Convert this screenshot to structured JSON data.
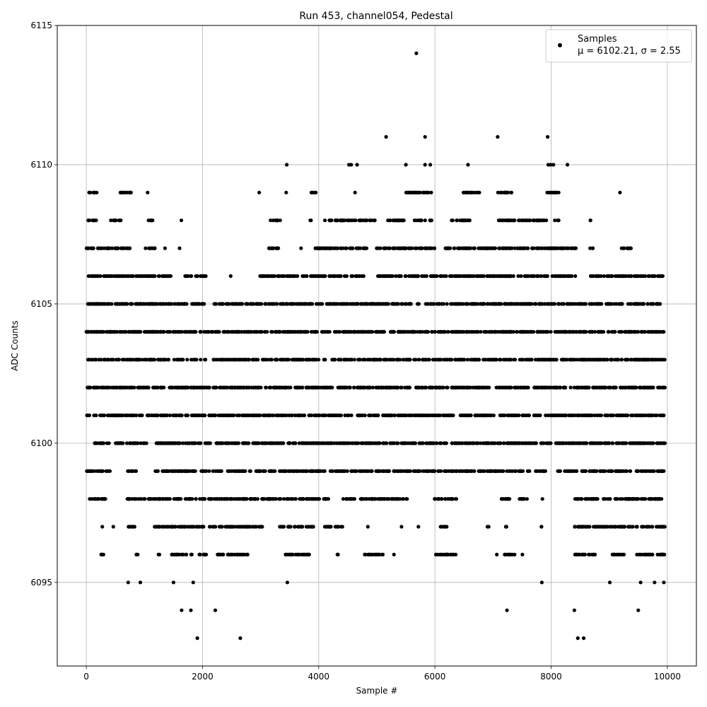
{
  "chart_data": {
    "type": "scatter",
    "title": "Run 453, channel054, Pedestal",
    "xlabel": "Sample #",
    "ylabel": "ADC Counts",
    "xlim": [
      -500,
      10500
    ],
    "ylim": [
      6092,
      6115
    ],
    "xticks": [
      0,
      2000,
      4000,
      6000,
      8000,
      10000
    ],
    "yticks": [
      6095,
      6100,
      6105,
      6110,
      6115
    ],
    "grid": true,
    "legend": {
      "placement": "top-right",
      "entries": [
        {
          "label": "Samples",
          "sublabel": "μ = 6102.21, σ = 2.55"
        }
      ]
    },
    "marker_color": "#000000",
    "series": [
      {
        "name": "Samples",
        "n_samples": 10000,
        "mean": 6102.21,
        "sigma": 2.55,
        "outliers": [
          {
            "x": 5680,
            "y": 6114
          },
          {
            "x": 5160,
            "y": 6111
          },
          {
            "x": 5830,
            "y": 6111
          },
          {
            "x": 7080,
            "y": 6111
          },
          {
            "x": 7940,
            "y": 6111
          },
          {
            "x": 3450,
            "y": 6110
          },
          {
            "x": 4520,
            "y": 6110
          },
          {
            "x": 4560,
            "y": 6110
          },
          {
            "x": 4660,
            "y": 6110
          },
          {
            "x": 5500,
            "y": 6110
          },
          {
            "x": 5830,
            "y": 6110
          },
          {
            "x": 5920,
            "y": 6110
          },
          {
            "x": 6570,
            "y": 6110
          },
          {
            "x": 7950,
            "y": 6110
          },
          {
            "x": 7990,
            "y": 6110
          },
          {
            "x": 8040,
            "y": 6110
          },
          {
            "x": 8280,
            "y": 6110
          },
          {
            "x": 1910,
            "y": 6093
          },
          {
            "x": 2650,
            "y": 6093
          },
          {
            "x": 8460,
            "y": 6093
          },
          {
            "x": 8560,
            "y": 6093
          },
          {
            "x": 720,
            "y": 6095
          },
          {
            "x": 930,
            "y": 6095
          },
          {
            "x": 1500,
            "y": 6095
          },
          {
            "x": 1840,
            "y": 6095
          },
          {
            "x": 3460,
            "y": 6095
          },
          {
            "x": 7840,
            "y": 6095
          },
          {
            "x": 9010,
            "y": 6095
          },
          {
            "x": 9540,
            "y": 6095
          },
          {
            "x": 9780,
            "y": 6095
          },
          {
            "x": 9940,
            "y": 6095
          },
          {
            "x": 1640,
            "y": 6094
          },
          {
            "x": 1800,
            "y": 6094
          },
          {
            "x": 2220,
            "y": 6094
          },
          {
            "x": 7240,
            "y": 6094
          },
          {
            "x": 8400,
            "y": 6094
          },
          {
            "x": 9500,
            "y": 6094
          }
        ],
        "bands": [
          {
            "y": 6109,
            "ranges": [
              [
                20,
                180
              ],
              [
                560,
                800
              ],
              [
                1050,
                1060
              ],
              [
                2970,
                2980
              ],
              [
                3430,
                3450
              ],
              [
                3840,
                3960
              ],
              [
                4620,
                4630
              ],
              [
                5460,
                5950
              ],
              [
                6490,
                6780
              ],
              [
                7080,
                7330
              ],
              [
                7930,
                8130
              ],
              [
                9180,
                9190
              ]
            ]
          },
          {
            "y": 6108,
            "ranges": [
              [
                20,
                180
              ],
              [
                420,
                620
              ],
              [
                1040,
                1140
              ],
              [
                1630,
                1640
              ],
              [
                3170,
                3350
              ],
              [
                3850,
                3880
              ],
              [
                4100,
                4980
              ],
              [
                5180,
                5550
              ],
              [
                5640,
                5950
              ],
              [
                6280,
                6600
              ],
              [
                7060,
                7960
              ],
              [
                8060,
                8130
              ],
              [
                8670,
                8700
              ]
            ]
          },
          {
            "y": 6107,
            "ranges": [
              [
                0,
                760
              ],
              [
                1010,
                1180
              ],
              [
                1350,
                1360
              ],
              [
                1600,
                1610
              ],
              [
                3140,
                3330
              ],
              [
                3690,
                3700
              ],
              [
                3930,
                4860
              ],
              [
                4990,
                6030
              ],
              [
                6170,
                8430
              ],
              [
                8670,
                8720
              ],
              [
                9190,
                9380
              ]
            ]
          },
          {
            "y": 6106,
            "ranges": [
              [
                0,
                1480
              ],
              [
                1700,
                2090
              ],
              [
                2480,
                2490
              ],
              [
                2990,
                4860
              ],
              [
                4990,
                8430
              ],
              [
                8680,
                9960
              ]
            ]
          },
          {
            "y": 6105,
            "ranges": [
              [
                20,
                2100
              ],
              [
                2200,
                2700
              ],
              [
                2740,
                8600
              ],
              [
                8650,
                9880
              ]
            ]
          },
          {
            "y": 6104,
            "ranges": [
              [
                0,
                9960
              ]
            ]
          },
          {
            "y": 6103,
            "ranges": [
              [
                0,
                9960
              ]
            ]
          },
          {
            "y": 6102,
            "ranges": [
              [
                0,
                9960
              ]
            ]
          },
          {
            "y": 6101,
            "ranges": [
              [
                0,
                9960
              ]
            ]
          },
          {
            "y": 6100,
            "ranges": [
              [
                130,
                420
              ],
              [
                470,
                1050
              ],
              [
                1200,
                9960
              ]
            ]
          },
          {
            "y": 6099,
            "ranges": [
              [
                0,
                420
              ],
              [
                700,
                880
              ],
              [
                1170,
                7400
              ],
              [
                7440,
                7640
              ],
              [
                7730,
                7920
              ],
              [
                8080,
                8160
              ],
              [
                8230,
                9960
              ]
            ]
          },
          {
            "y": 6098,
            "ranges": [
              [
                30,
                340
              ],
              [
                700,
                1440
              ],
              [
                1500,
                3830
              ],
              [
                3850,
                4190
              ],
              [
                4420,
                4630
              ],
              [
                4700,
                5530
              ],
              [
                5990,
                6370
              ],
              [
                7080,
                7290
              ],
              [
                7450,
                7620
              ],
              [
                7840,
                7860
              ],
              [
                8400,
                9960
              ]
            ]
          },
          {
            "y": 6097,
            "ranges": [
              [
                270,
                280
              ],
              [
                460,
                470
              ],
              [
                700,
                860
              ],
              [
                1170,
                3030
              ],
              [
                3330,
                3910
              ],
              [
                4070,
                4420
              ],
              [
                4840,
                4850
              ],
              [
                5420,
                5430
              ],
              [
                5710,
                5720
              ],
              [
                6090,
                6210
              ],
              [
                6890,
                6940
              ],
              [
                7190,
                7270
              ],
              [
                7820,
                7860
              ],
              [
                8400,
                9960
              ]
            ]
          },
          {
            "y": 6096,
            "ranges": [
              [
                250,
                340
              ],
              [
                840,
                900
              ],
              [
                1220,
                1260
              ],
              [
                1470,
                1820
              ],
              [
                1930,
                2100
              ],
              [
                2250,
                2800
              ],
              [
                3390,
                3840
              ],
              [
                4290,
                4360
              ],
              [
                4790,
                5120
              ],
              [
                5290,
                5300
              ],
              [
                6010,
                6360
              ],
              [
                7060,
                7070
              ],
              [
                7200,
                7380
              ],
              [
                7500,
                7510
              ],
              [
                8410,
                8800
              ],
              [
                9020,
                9270
              ],
              [
                9440,
                9960
              ]
            ]
          }
        ]
      }
    ]
  }
}
